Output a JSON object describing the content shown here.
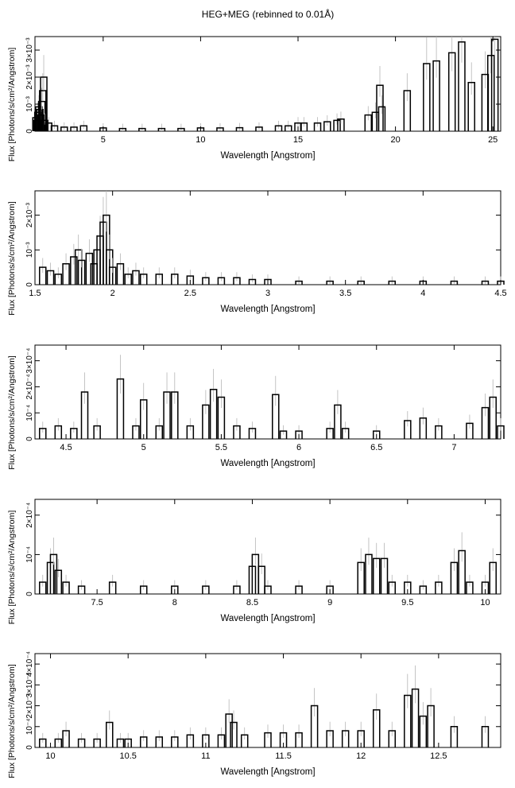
{
  "figure": {
    "title": "HEG+MEG (rebinned to 0.01Å)"
  },
  "chart_data": [
    {
      "type": "line",
      "xlabel": "Wavelength [Angstrom]",
      "ylabel": "Flux [Photons/s/cm²/Angstrom]",
      "xlim": [
        1.5,
        25.4
      ],
      "ylim": [
        0,
        0.0035
      ],
      "x_ticks": [
        5,
        10,
        15,
        20,
        25
      ],
      "x_tick_labels": [
        "5",
        "10",
        "15",
        "20",
        "25"
      ],
      "y_ticks": [
        0,
        0.001,
        0.002,
        0.003
      ],
      "y_tick_labels": [
        "0",
        "10⁻³",
        "2×10⁻³",
        "3×10⁻³"
      ],
      "series": [
        {
          "x": [
            1.55,
            1.6,
            1.65,
            1.7,
            1.75,
            1.8,
            1.85,
            1.9,
            1.95,
            2.0,
            2.2,
            2.5,
            3.0,
            3.5,
            4.0,
            5.0,
            6.0,
            7.0,
            8.0,
            9.0,
            10.0,
            11.0,
            12.0,
            13.0,
            14.0,
            14.5,
            15.0,
            15.3,
            16.0,
            16.5,
            17.0,
            17.2,
            18.6,
            18.97,
            19.2,
            19.3,
            20.6,
            21.6,
            22.1,
            22.9,
            23.4,
            23.9,
            24.6,
            24.9,
            25.1
          ],
          "y": [
            0.0005,
            0.0004,
            0.0007,
            0.0009,
            0.0008,
            0.0006,
            0.0011,
            0.0015,
            0.002,
            0.0004,
            0.0003,
            0.0002,
            0.00015,
            0.00015,
            0.0002,
            0.00012,
            0.0001,
            0.0001,
            0.0001,
            0.0001,
            0.00012,
            0.00012,
            0.00013,
            0.00015,
            0.0002,
            0.0002,
            0.0003,
            0.0003,
            0.0003,
            0.00035,
            0.0004,
            0.00045,
            0.0006,
            0.0007,
            0.0017,
            0.0009,
            0.0015,
            0.0025,
            0.0026,
            0.0029,
            0.0033,
            0.0018,
            0.0021,
            0.0028,
            0.0034
          ]
        }
      ]
    },
    {
      "type": "line",
      "xlabel": "Wavelength [Angstrom]",
      "ylabel": "Flux [Photons/s/cm²/Angstrom]",
      "xlim": [
        1.5,
        4.5
      ],
      "ylim": [
        0,
        0.0027
      ],
      "x_ticks": [
        1.5,
        2,
        2.5,
        3,
        3.5,
        4,
        4.5
      ],
      "x_tick_labels": [
        "1.5",
        "2",
        "2.5",
        "3",
        "3.5",
        "4",
        "4.5"
      ],
      "y_ticks": [
        0,
        0.001,
        0.002
      ],
      "y_tick_labels": [
        "0",
        "10⁻³",
        "2×10⁻³"
      ],
      "series": [
        {
          "x": [
            1.55,
            1.6,
            1.65,
            1.7,
            1.75,
            1.78,
            1.8,
            1.85,
            1.88,
            1.9,
            1.92,
            1.94,
            1.96,
            1.98,
            2.0,
            2.05,
            2.1,
            2.15,
            2.2,
            2.3,
            2.4,
            2.5,
            2.6,
            2.7,
            2.8,
            2.9,
            3.0,
            3.2,
            3.4,
            3.6,
            3.8,
            4.0,
            4.2,
            4.4,
            4.5
          ],
          "y": [
            0.0005,
            0.0004,
            0.0003,
            0.0006,
            0.0008,
            0.001,
            0.0007,
            0.0009,
            0.0006,
            0.001,
            0.0014,
            0.0018,
            0.002,
            0.001,
            0.0005,
            0.0006,
            0.0003,
            0.0004,
            0.0003,
            0.0003,
            0.0003,
            0.00025,
            0.0002,
            0.0002,
            0.0002,
            0.00015,
            0.00015,
            0.0001,
            0.0001,
            0.0001,
            0.0001,
            0.0001,
            0.0001,
            0.0001,
            0.0001
          ]
        }
      ]
    },
    {
      "type": "line",
      "xlabel": "Wavelength [Angstrom]",
      "ylabel": "Flux [Photons/s/cm²/Angstrom]",
      "xlim": [
        4.3,
        7.3
      ],
      "ylim": [
        0,
        0.00036
      ],
      "x_ticks": [
        4.5,
        5,
        5.5,
        6,
        6.5,
        7
      ],
      "x_tick_labels": [
        "4.5",
        "5",
        "5.5",
        "6",
        "6.5",
        "7"
      ],
      "y_ticks": [
        0,
        0.0001,
        0.0002,
        0.0003
      ],
      "y_tick_labels": [
        "0",
        "10⁻⁴",
        "2×10⁻⁴",
        "3×10⁻⁴"
      ],
      "series": [
        {
          "x": [
            4.35,
            4.45,
            4.55,
            4.62,
            4.7,
            4.85,
            4.95,
            5.0,
            5.1,
            5.15,
            5.2,
            5.3,
            5.4,
            5.45,
            5.5,
            5.6,
            5.7,
            5.85,
            5.9,
            6.0,
            6.2,
            6.25,
            6.3,
            6.5,
            6.7,
            6.8,
            6.9,
            7.1,
            7.2,
            7.25,
            7.3
          ],
          "y": [
            4e-05,
            5e-05,
            4e-05,
            0.00018,
            5e-05,
            0.00023,
            5e-05,
            0.00015,
            5e-05,
            0.00018,
            0.00018,
            5e-05,
            0.00013,
            0.00019,
            0.00016,
            5e-05,
            4e-05,
            0.00017,
            3e-05,
            3e-05,
            4e-05,
            0.00013,
            4e-05,
            3e-05,
            7e-05,
            8e-05,
            5e-05,
            6e-05,
            0.00012,
            0.00016,
            5e-05
          ]
        }
      ]
    },
    {
      "type": "line",
      "xlabel": "Wavelength [Angstrom]",
      "ylabel": "Flux [Photons/s/cm²/Angstrom]",
      "xlim": [
        7.1,
        10.1
      ],
      "ylim": [
        0,
        0.00024
      ],
      "x_ticks": [
        7.5,
        8,
        8.5,
        9,
        9.5,
        10
      ],
      "x_tick_labels": [
        "7.5",
        "8",
        "8.5",
        "9",
        "9.5",
        "10"
      ],
      "y_ticks": [
        0,
        0.0001,
        0.0002
      ],
      "y_tick_labels": [
        "0",
        "10⁻⁴",
        "2×10⁻⁴"
      ],
      "series": [
        {
          "x": [
            7.15,
            7.2,
            7.22,
            7.25,
            7.3,
            7.4,
            7.6,
            7.8,
            8.0,
            8.2,
            8.4,
            8.5,
            8.52,
            8.56,
            8.6,
            8.8,
            9.0,
            9.2,
            9.25,
            9.3,
            9.35,
            9.4,
            9.5,
            9.6,
            9.7,
            9.8,
            9.85,
            9.9,
            10.0,
            10.05
          ],
          "y": [
            3e-05,
            8e-05,
            0.0001,
            6e-05,
            3e-05,
            2e-05,
            3e-05,
            2e-05,
            2e-05,
            2e-05,
            2e-05,
            7e-05,
            0.0001,
            7e-05,
            2e-05,
            2e-05,
            2e-05,
            8e-05,
            0.0001,
            9e-05,
            9e-05,
            3e-05,
            3e-05,
            2e-05,
            3e-05,
            8e-05,
            0.00011,
            3e-05,
            3e-05,
            8e-05
          ]
        }
      ]
    },
    {
      "type": "line",
      "xlabel": "Wavelength [Angstrom]",
      "ylabel": "Flux [Photons/s/cm²/Angstrom]",
      "xlim": [
        9.9,
        12.9
      ],
      "ylim": [
        0,
        0.00045
      ],
      "x_ticks": [
        10,
        10.5,
        11,
        11.5,
        12,
        12.5
      ],
      "x_tick_labels": [
        "10",
        "10.5",
        "11",
        "11.5",
        "12",
        "12.5"
      ],
      "y_ticks": [
        0,
        0.0001,
        0.0002,
        0.0003,
        0.0004
      ],
      "y_tick_labels": [
        "0",
        "10⁻⁴",
        "2×10⁻⁴",
        "3×10⁻⁴",
        "4×10⁻⁴"
      ],
      "series": [
        {
          "x": [
            9.95,
            10.05,
            10.1,
            10.2,
            10.3,
            10.38,
            10.45,
            10.5,
            10.6,
            10.7,
            10.8,
            10.9,
            11.0,
            11.1,
            11.15,
            11.18,
            11.25,
            11.4,
            11.5,
            11.6,
            11.7,
            11.8,
            11.9,
            12.0,
            12.1,
            12.2,
            12.3,
            12.35,
            12.4,
            12.45,
            12.6,
            12.8
          ],
          "y": [
            4e-05,
            4e-05,
            8e-05,
            4e-05,
            4e-05,
            0.00012,
            4e-05,
            4e-05,
            5e-05,
            5e-05,
            5e-05,
            6e-05,
            6e-05,
            6e-05,
            0.00016,
            0.00012,
            6e-05,
            7e-05,
            7e-05,
            7e-05,
            0.0002,
            8e-05,
            8e-05,
            8e-05,
            0.00018,
            8e-05,
            0.00025,
            0.00028,
            0.00015,
            0.0002,
            0.0001,
            0.0001
          ]
        }
      ]
    }
  ]
}
